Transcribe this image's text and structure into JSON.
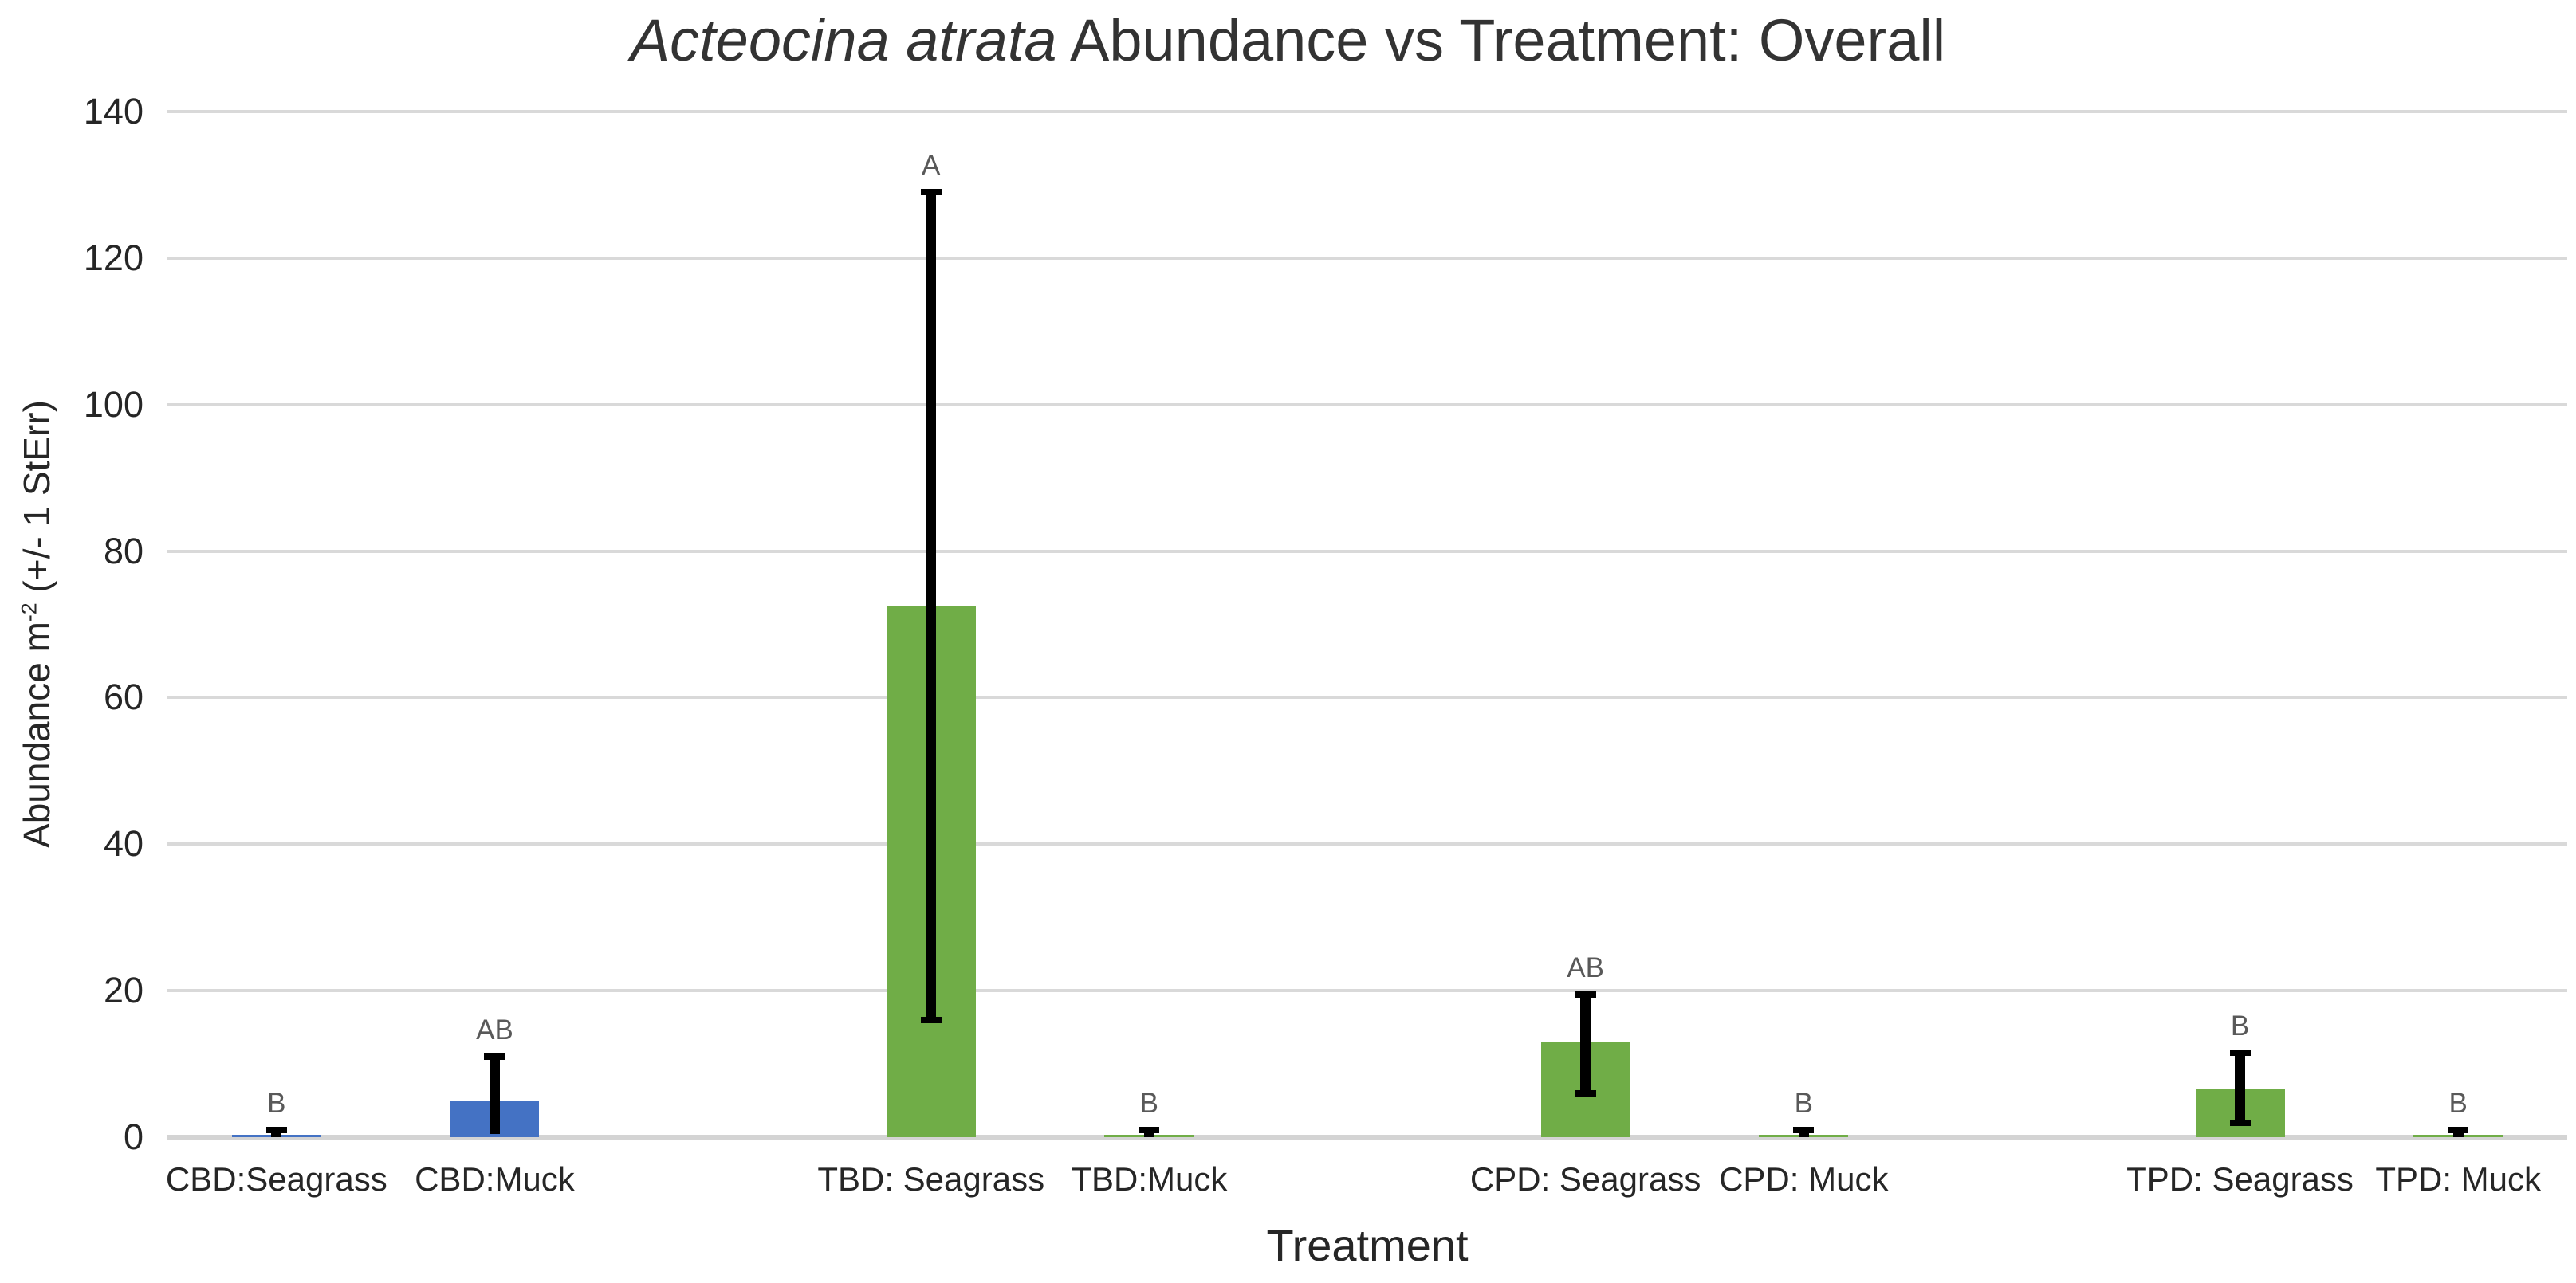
{
  "chart_data": {
    "type": "bar",
    "title_italic": "Acteocina atrata",
    "title_rest": " Abundance vs Treatment: Overall",
    "xlabel": "Treatment",
    "ylabel_prefix": "Abundance m",
    "ylabel_sup": "-2",
    "ylabel_suffix": " (+/- 1 StErr)",
    "ylim": [
      0,
      140
    ],
    "y_ticks": [
      0,
      20,
      40,
      60,
      80,
      100,
      120,
      140
    ],
    "grid": true,
    "legend": "none",
    "slots_total": 11,
    "gridline_color": "#d9d9d9",
    "error_bar_color": "#000000",
    "bar_colors": {
      "blue": "#4472C4",
      "green": "#70AD47"
    },
    "categories": [
      {
        "label": "CBD:Seagrass",
        "slot": 0,
        "value": 0.3,
        "err_low": 0,
        "err_high": 1,
        "letter": "B",
        "color": "#4472C4"
      },
      {
        "label": "CBD:Muck",
        "slot": 1,
        "value": 5,
        "err_low": 0.4,
        "err_high": 11,
        "letter": "AB",
        "color": "#4472C4"
      },
      {
        "label": "TBD: Seagrass",
        "slot": 3,
        "value": 72.5,
        "err_low": 16,
        "err_high": 129,
        "letter": "A",
        "color": "#70AD47"
      },
      {
        "label": "TBD:Muck",
        "slot": 4,
        "value": 0.3,
        "err_low": 0,
        "err_high": 1,
        "letter": "B",
        "color": "#70AD47"
      },
      {
        "label": "CPD: Seagrass",
        "slot": 6,
        "value": 13,
        "err_low": 6,
        "err_high": 19.5,
        "letter": "AB",
        "color": "#70AD47"
      },
      {
        "label": "CPD: Muck",
        "slot": 7,
        "value": 0.3,
        "err_low": 0,
        "err_high": 1,
        "letter": "B",
        "color": "#70AD47"
      },
      {
        "label": "TPD: Seagrass",
        "slot": 9,
        "value": 6.5,
        "err_low": 2,
        "err_high": 11.5,
        "letter": "B",
        "color": "#70AD47"
      },
      {
        "label": "TPD: Muck",
        "slot": 10,
        "value": 0.3,
        "err_low": 0,
        "err_high": 1,
        "letter": "B",
        "color": "#70AD47"
      }
    ]
  }
}
